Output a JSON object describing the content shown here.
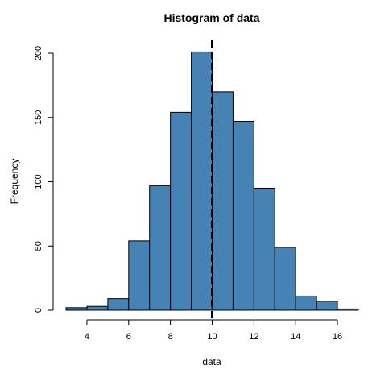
{
  "chart_data": {
    "type": "bar",
    "title": "Histogram of data",
    "xlabel": "data",
    "ylabel": "Frequency",
    "bins": [
      {
        "x0": 3,
        "x1": 4,
        "count": 2
      },
      {
        "x0": 4,
        "x1": 5,
        "count": 3
      },
      {
        "x0": 5,
        "x1": 6,
        "count": 9
      },
      {
        "x0": 6,
        "x1": 7,
        "count": 54
      },
      {
        "x0": 7,
        "x1": 8,
        "count": 97
      },
      {
        "x0": 8,
        "x1": 9,
        "count": 154
      },
      {
        "x0": 9,
        "x1": 10,
        "count": 201
      },
      {
        "x0": 10,
        "x1": 11,
        "count": 170
      },
      {
        "x0": 11,
        "x1": 12,
        "count": 147
      },
      {
        "x0": 12,
        "x1": 13,
        "count": 95
      },
      {
        "x0": 13,
        "x1": 14,
        "count": 49
      },
      {
        "x0": 14,
        "x1": 15,
        "count": 11
      },
      {
        "x0": 15,
        "x1": 16,
        "count": 7
      },
      {
        "x0": 16,
        "x1": 17,
        "count": 1
      }
    ],
    "xlim": [
      3,
      17
    ],
    "ylim": [
      0,
      200
    ],
    "xticks": [
      "4",
      "6",
      "8",
      "10",
      "12",
      "14",
      "16"
    ],
    "yticks": [
      "0",
      "50",
      "100",
      "150",
      "200"
    ],
    "reference_line": {
      "x": 10,
      "style": "dashed"
    },
    "bar_color": "#4682b4",
    "grid": false,
    "legend": "none"
  }
}
